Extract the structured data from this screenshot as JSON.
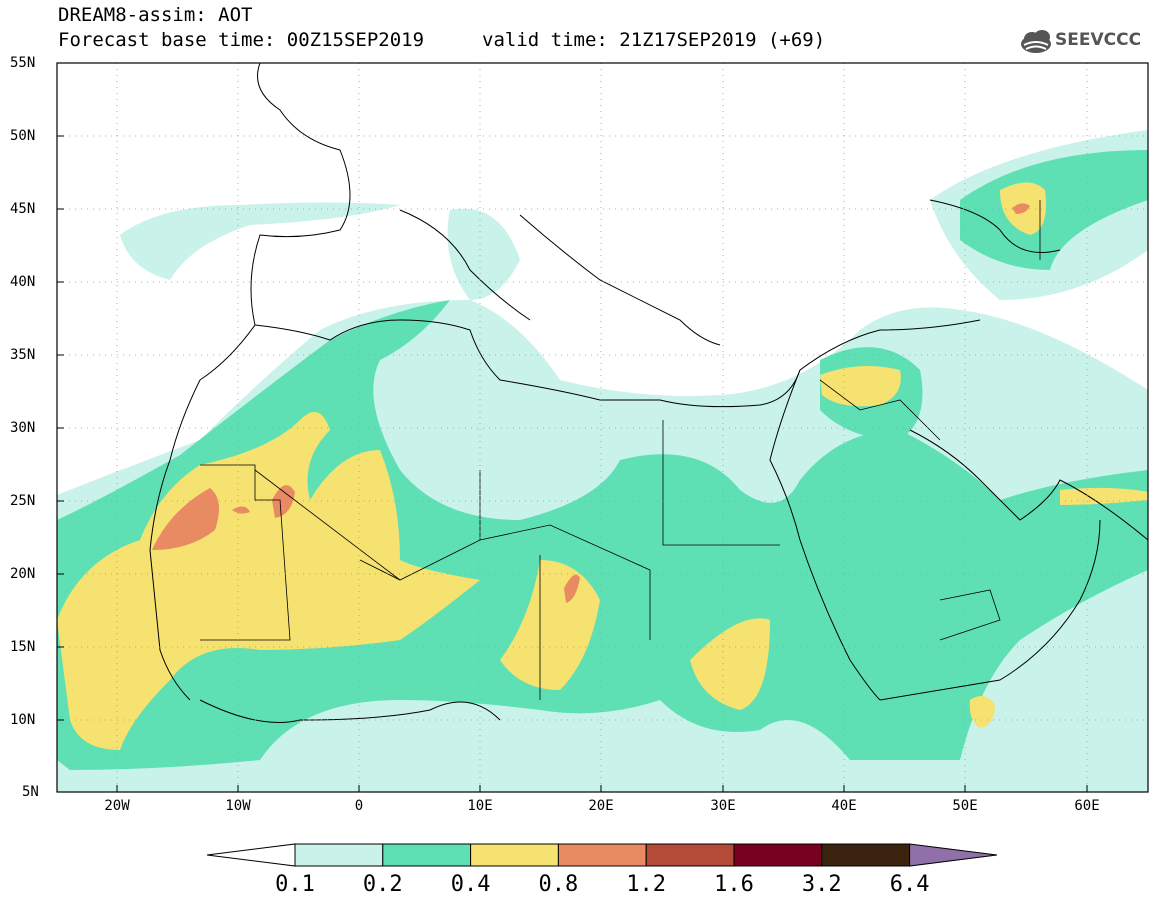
{
  "header": {
    "title": "DREAM8-assim: AOT",
    "base_time": "Forecast base time: 00Z15SEP2019",
    "valid_time": "valid time: 21Z17SEP2019 (+69)",
    "logo_text": "SEEVCCC"
  },
  "map": {
    "lon_range": [
      -25,
      65
    ],
    "lat_range": [
      5,
      55
    ],
    "lat_labels": [
      "55N",
      "50N",
      "45N",
      "40N",
      "35N",
      "30N",
      "25N",
      "20N",
      "15N",
      "10N",
      "5N"
    ],
    "lon_labels": [
      "20W",
      "10W",
      "0",
      "10E",
      "20E",
      "30E",
      "40E",
      "50E",
      "60E"
    ]
  },
  "colorbar": {
    "labels": [
      "0.1",
      "0.2",
      "0.4",
      "0.8",
      "1.2",
      "1.6",
      "3.2",
      "6.4"
    ],
    "colors": [
      "#c8f2ea",
      "#5fe0b4",
      "#f5e270",
      "#e88a62",
      "#b44a38",
      "#780020",
      "#3a2410",
      "#9070a8"
    ]
  }
}
